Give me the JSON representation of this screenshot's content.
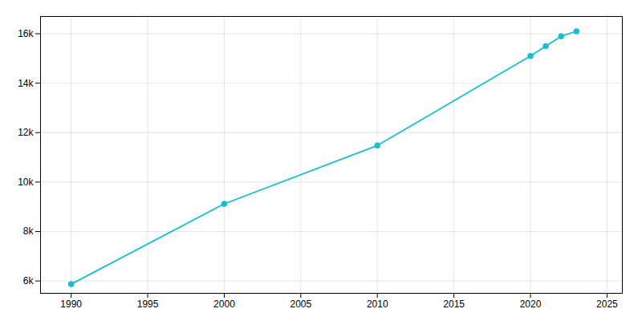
{
  "chart_data": {
    "type": "line",
    "x": [
      1990,
      2000,
      2010,
      2020,
      2021,
      2022,
      2023
    ],
    "values": [
      5870,
      9120,
      11480,
      15100,
      15500,
      15900,
      16100
    ],
    "color": "#17becf",
    "marker": "circle",
    "xlim": [
      1988,
      2026
    ],
    "xticks": [
      1990,
      1995,
      2000,
      2005,
      2010,
      2015,
      2020,
      2025
    ],
    "ylim": [
      5500,
      16700
    ],
    "yticks": [
      {
        "value": 6000,
        "label": "6k"
      },
      {
        "value": 8000,
        "label": "8k"
      },
      {
        "value": 10000,
        "label": "10k"
      },
      {
        "value": 12000,
        "label": "12k"
      },
      {
        "value": 14000,
        "label": "14k"
      },
      {
        "value": 16000,
        "label": "16k"
      }
    ],
    "grid": true
  }
}
